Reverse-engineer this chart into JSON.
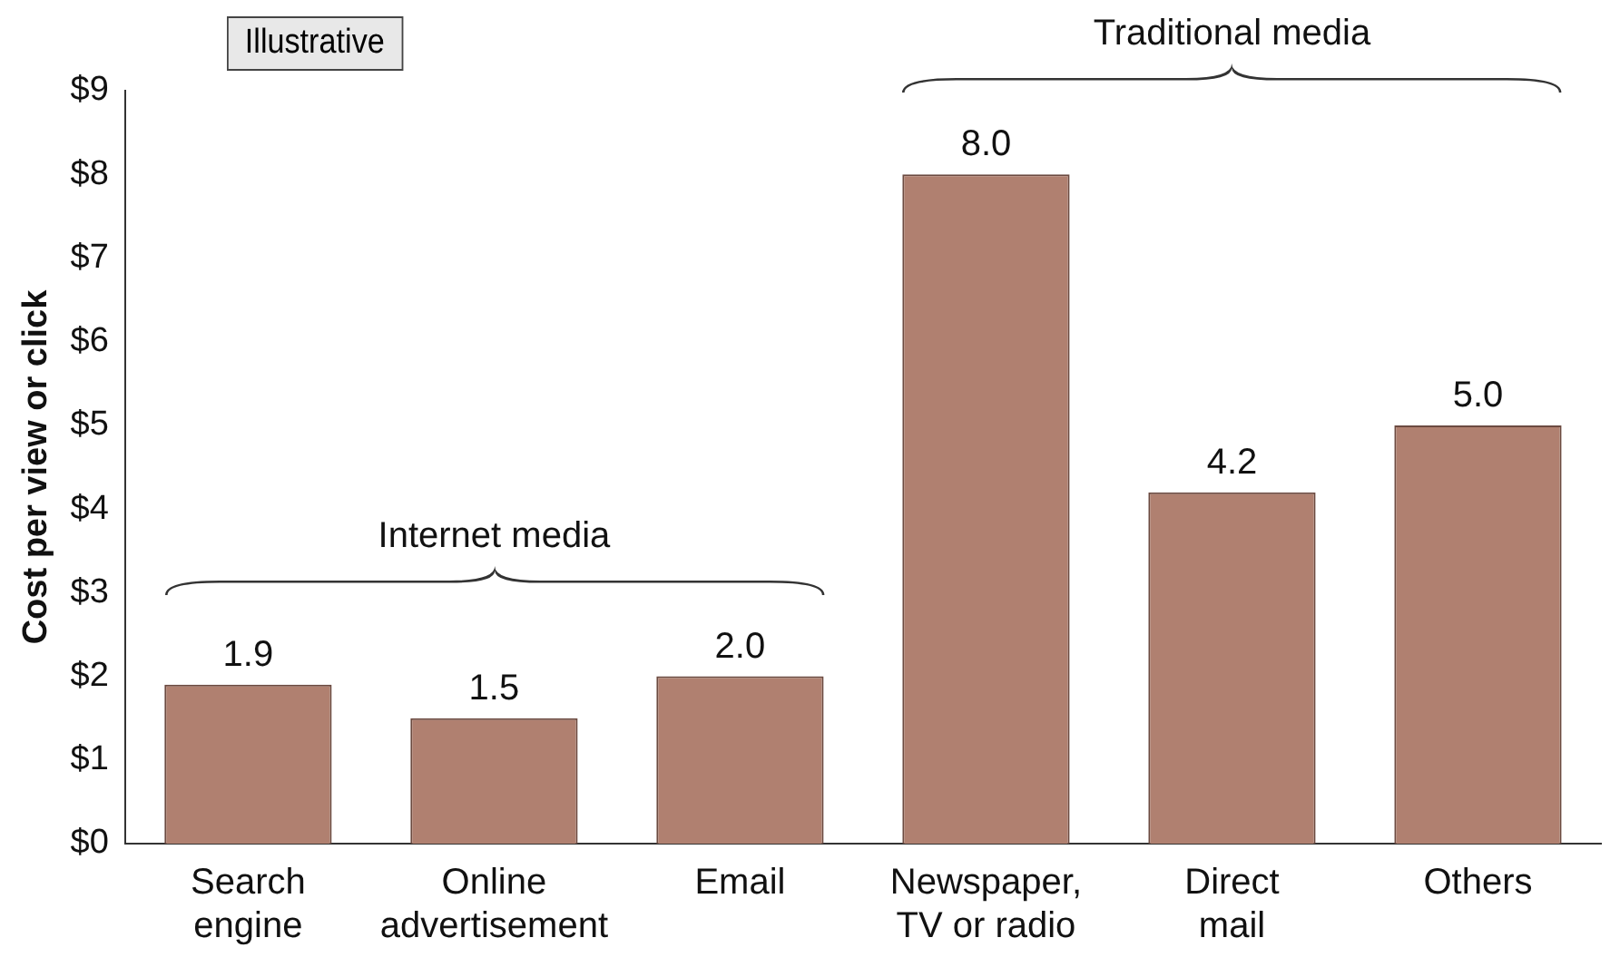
{
  "chart_data": {
    "type": "bar",
    "ylabel": "Cost per view or click",
    "categories": [
      "Search engine",
      "Online advertisement",
      "Email",
      "Newspaper, TV or radio",
      "Direct mail",
      "Others"
    ],
    "values": [
      1.9,
      1.5,
      2.0,
      8.0,
      4.2,
      5.0
    ],
    "value_labels": [
      "1.9",
      "1.5",
      "2.0",
      "8.0",
      "4.2",
      "5.0"
    ],
    "color": "#b08070",
    "ylim": [
      0,
      9
    ],
    "yticks": [
      {
        "value": 0,
        "label": "$0"
      },
      {
        "value": 1,
        "label": "$1"
      },
      {
        "value": 2,
        "label": "$2"
      },
      {
        "value": 3,
        "label": "$3"
      },
      {
        "value": 4,
        "label": "$4"
      },
      {
        "value": 5,
        "label": "$5"
      },
      {
        "value": 6,
        "label": "$6"
      },
      {
        "value": 7,
        "label": "$7"
      },
      {
        "value": 8,
        "label": "$8"
      },
      {
        "value": 9,
        "label": "$9"
      }
    ],
    "grid": false,
    "legend": false,
    "annotations": [
      "Illustrative",
      "Internet media",
      "Traditional media"
    ]
  }
}
